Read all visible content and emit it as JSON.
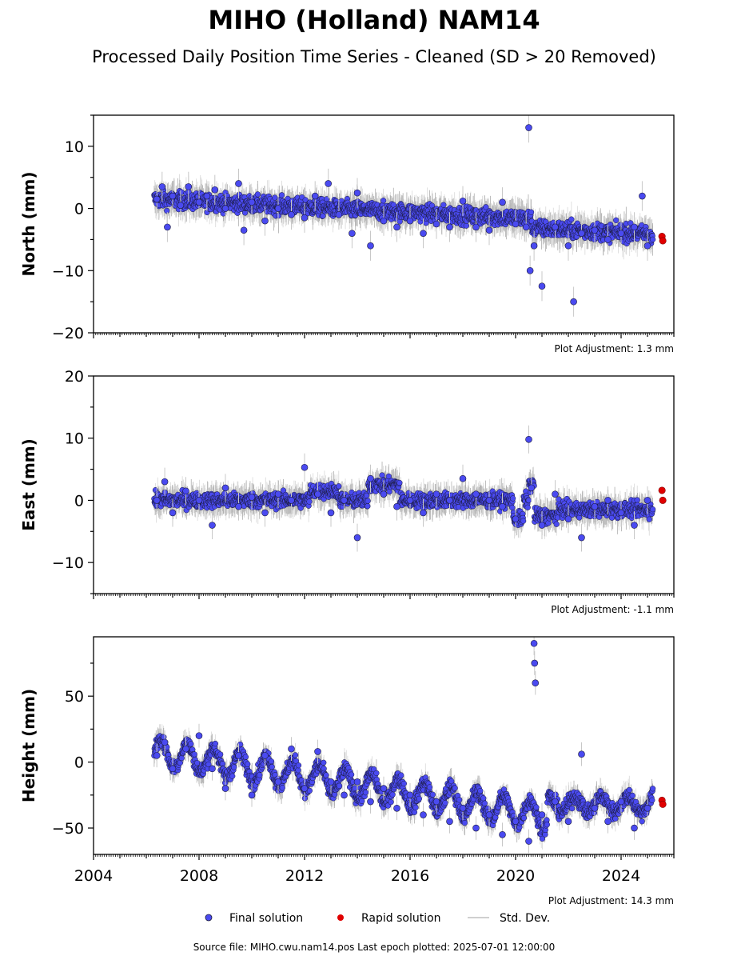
{
  "header": {
    "title": "MIHO (Holland) NAM14",
    "subtitle": "Processed Daily Position Time Series - Cleaned (SD > 20 Removed)"
  },
  "legend": {
    "final": "Final solution",
    "rapid": "Rapid solution",
    "stddev": "Std. Dev.",
    "placement": "bottom-center"
  },
  "footer": "Source file: MIHO.cwu.nam14.pos  Last epoch plotted: 2025-07-01 12:00:00",
  "colors": {
    "final": "#4a4af0",
    "rapid": "#e00000",
    "stddev": "#b0b0b0",
    "edge": "#1a1a3a"
  },
  "chart_data": [
    {
      "type": "scatter",
      "ylabel": "North (mm)",
      "adjustment": "Plot Adjustment: 1.3 mm",
      "xlim": [
        2004,
        2026
      ],
      "ylim": [
        -20,
        15
      ],
      "yticks": [
        -20,
        -10,
        0,
        10
      ],
      "series": [
        {
          "name": "Final solution",
          "points": [
            [
              2006.4,
              1.5
            ],
            [
              2006.6,
              3.5
            ],
            [
              2006.8,
              -3
            ],
            [
              2007.0,
              2
            ],
            [
              2007.3,
              0.5
            ],
            [
              2007.6,
              3.5
            ],
            [
              2008.0,
              1
            ],
            [
              2008.3,
              2
            ],
            [
              2008.6,
              3
            ],
            [
              2009.0,
              0
            ],
            [
              2009.5,
              4
            ],
            [
              2009.7,
              -3.5
            ],
            [
              2010.0,
              1
            ],
            [
              2010.5,
              -2
            ],
            [
              2011.0,
              0
            ],
            [
              2011.5,
              -1
            ],
            [
              2012.0,
              -1.5
            ],
            [
              2012.4,
              2
            ],
            [
              2012.9,
              4
            ],
            [
              2013.3,
              -1
            ],
            [
              2013.8,
              -4
            ],
            [
              2014.0,
              2.5
            ],
            [
              2014.5,
              -6
            ],
            [
              2015.0,
              -2
            ],
            [
              2015.5,
              -3
            ],
            [
              2016.0,
              -2
            ],
            [
              2016.5,
              -4
            ],
            [
              2017.0,
              -2.5
            ],
            [
              2017.5,
              -3
            ],
            [
              2018.0,
              1.2
            ],
            [
              2018.5,
              -3
            ],
            [
              2019.0,
              -3.5
            ],
            [
              2019.5,
              1
            ],
            [
              2020.0,
              -2.5
            ],
            [
              2020.4,
              -3
            ],
            [
              2020.5,
              13
            ],
            [
              2020.55,
              -10
            ],
            [
              2020.7,
              -6
            ],
            [
              2021.0,
              -12.5
            ],
            [
              2021.5,
              -3
            ],
            [
              2022.0,
              -6
            ],
            [
              2022.2,
              -15
            ],
            [
              2022.5,
              -4
            ],
            [
              2023.0,
              -3.5
            ],
            [
              2023.5,
              -5
            ],
            [
              2024.0,
              -4
            ],
            [
              2024.5,
              -3
            ],
            [
              2024.8,
              2
            ],
            [
              2025.0,
              -6
            ]
          ]
        },
        {
          "name": "Rapid solution",
          "points": [
            [
              2025.55,
              -4.5
            ],
            [
              2025.58,
              -5.2
            ]
          ]
        }
      ]
    },
    {
      "type": "scatter",
      "ylabel": "East (mm)",
      "adjustment": "Plot Adjustment: -1.1 mm",
      "xlim": [
        2004,
        2026
      ],
      "ylim": [
        -15,
        20
      ],
      "yticks": [
        -10,
        0,
        10,
        20
      ],
      "series": [
        {
          "name": "Final solution",
          "points": [
            [
              2006.4,
              0
            ],
            [
              2006.7,
              3
            ],
            [
              2007.0,
              -2
            ],
            [
              2007.5,
              1.5
            ],
            [
              2008.0,
              0
            ],
            [
              2008.5,
              -4
            ],
            [
              2009.0,
              2
            ],
            [
              2009.5,
              -1
            ],
            [
              2010.0,
              0.5
            ],
            [
              2010.5,
              -2
            ],
            [
              2011.0,
              1
            ],
            [
              2011.5,
              0
            ],
            [
              2012.0,
              5.3
            ],
            [
              2012.5,
              1
            ],
            [
              2013.0,
              -2
            ],
            [
              2013.5,
              0
            ],
            [
              2014.0,
              -6
            ],
            [
              2014.5,
              3.5
            ],
            [
              2015.0,
              1
            ],
            [
              2015.5,
              -1
            ],
            [
              2016.0,
              0
            ],
            [
              2016.5,
              -2
            ],
            [
              2017.0,
              1
            ],
            [
              2017.5,
              0
            ],
            [
              2018.0,
              3.5
            ],
            [
              2018.5,
              1
            ],
            [
              2019.0,
              0
            ],
            [
              2019.5,
              -1
            ],
            [
              2020.0,
              -3
            ],
            [
              2020.5,
              9.8
            ],
            [
              2020.6,
              2
            ],
            [
              2021.0,
              -4
            ],
            [
              2021.5,
              1
            ],
            [
              2022.0,
              -3
            ],
            [
              2022.5,
              -6
            ],
            [
              2023.0,
              -1
            ],
            [
              2023.5,
              0
            ],
            [
              2024.0,
              -2
            ],
            [
              2024.5,
              -4
            ],
            [
              2025.0,
              0
            ]
          ]
        },
        {
          "name": "Rapid solution",
          "points": [
            [
              2025.55,
              1.6
            ],
            [
              2025.58,
              0
            ]
          ]
        }
      ]
    },
    {
      "type": "scatter",
      "ylabel": "Height (mm)",
      "adjustment": "Plot Adjustment: 14.3 mm",
      "xlim": [
        2004,
        2026
      ],
      "ylim": [
        -70,
        95
      ],
      "yticks": [
        -50,
        0,
        50
      ],
      "xticks": [
        2004,
        2008,
        2012,
        2016,
        2020,
        2024
      ],
      "series": [
        {
          "name": "Final solution",
          "points": [
            [
              2006.4,
              5
            ],
            [
              2006.7,
              15
            ],
            [
              2007.0,
              -5
            ],
            [
              2007.5,
              10
            ],
            [
              2008.0,
              20
            ],
            [
              2008.5,
              -5
            ],
            [
              2009.0,
              -20
            ],
            [
              2009.5,
              5
            ],
            [
              2010.0,
              -25
            ],
            [
              2010.5,
              5
            ],
            [
              2011.0,
              -15
            ],
            [
              2011.5,
              10
            ],
            [
              2012.0,
              -20
            ],
            [
              2012.5,
              8
            ],
            [
              2013.0,
              -15
            ],
            [
              2013.5,
              -25
            ],
            [
              2014.0,
              -15
            ],
            [
              2014.5,
              -30
            ],
            [
              2015.0,
              -20
            ],
            [
              2015.5,
              -35
            ],
            [
              2016.0,
              -25
            ],
            [
              2016.5,
              -40
            ],
            [
              2017.0,
              -30
            ],
            [
              2017.5,
              -45
            ],
            [
              2018.0,
              -35
            ],
            [
              2018.5,
              -50
            ],
            [
              2019.0,
              -40
            ],
            [
              2019.5,
              -55
            ],
            [
              2020.0,
              -45
            ],
            [
              2020.5,
              -60
            ],
            [
              2020.7,
              90
            ],
            [
              2020.72,
              75
            ],
            [
              2020.75,
              60
            ],
            [
              2021.0,
              -40
            ],
            [
              2021.5,
              -30
            ],
            [
              2022.0,
              -45
            ],
            [
              2022.5,
              6
            ],
            [
              2023.0,
              -35
            ],
            [
              2023.5,
              -45
            ],
            [
              2024.0,
              -30
            ],
            [
              2024.5,
              -50
            ],
            [
              2025.0,
              -35
            ]
          ]
        },
        {
          "name": "Rapid solution",
          "points": [
            [
              2025.55,
              -29
            ],
            [
              2025.58,
              -32
            ]
          ]
        }
      ]
    }
  ]
}
